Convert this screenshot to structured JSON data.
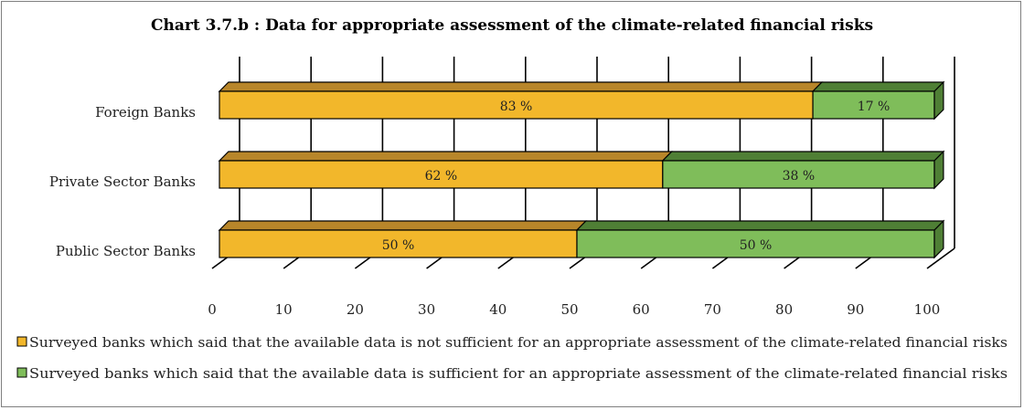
{
  "chart_data": {
    "type": "bar",
    "orientation": "horizontal",
    "stacked": true,
    "three_d": true,
    "title": "Chart 3.7.b : Data for appropriate assessment of the climate-related financial risks",
    "categories": [
      "Foreign Banks",
      "Private Sector Banks",
      "Public Sector Banks"
    ],
    "series": [
      {
        "name": "Surveyed banks which said that the available data is not sufficient for an appropriate assessment of the climate-related financial risks",
        "values": [
          83,
          62,
          50
        ],
        "labels": [
          "83 %",
          "62 %",
          "50 %"
        ],
        "color": "#f2b72b",
        "top_color": "#b8862a"
      },
      {
        "name": "Surveyed banks which said that the available data is sufficient for an appropriate assessment of the climate-related financial risks",
        "values": [
          17,
          38,
          50
        ],
        "labels": [
          "17 %",
          "38 %",
          "50 %"
        ],
        "color": "#7fbd5a",
        "top_color": "#4f7f35"
      }
    ],
    "xlim": [
      0,
      100
    ],
    "xticks": [
      "0",
      "10",
      "20",
      "30",
      "40",
      "50",
      "60",
      "70",
      "80",
      "90",
      "100"
    ],
    "grid": true,
    "legend_position": "bottom"
  }
}
